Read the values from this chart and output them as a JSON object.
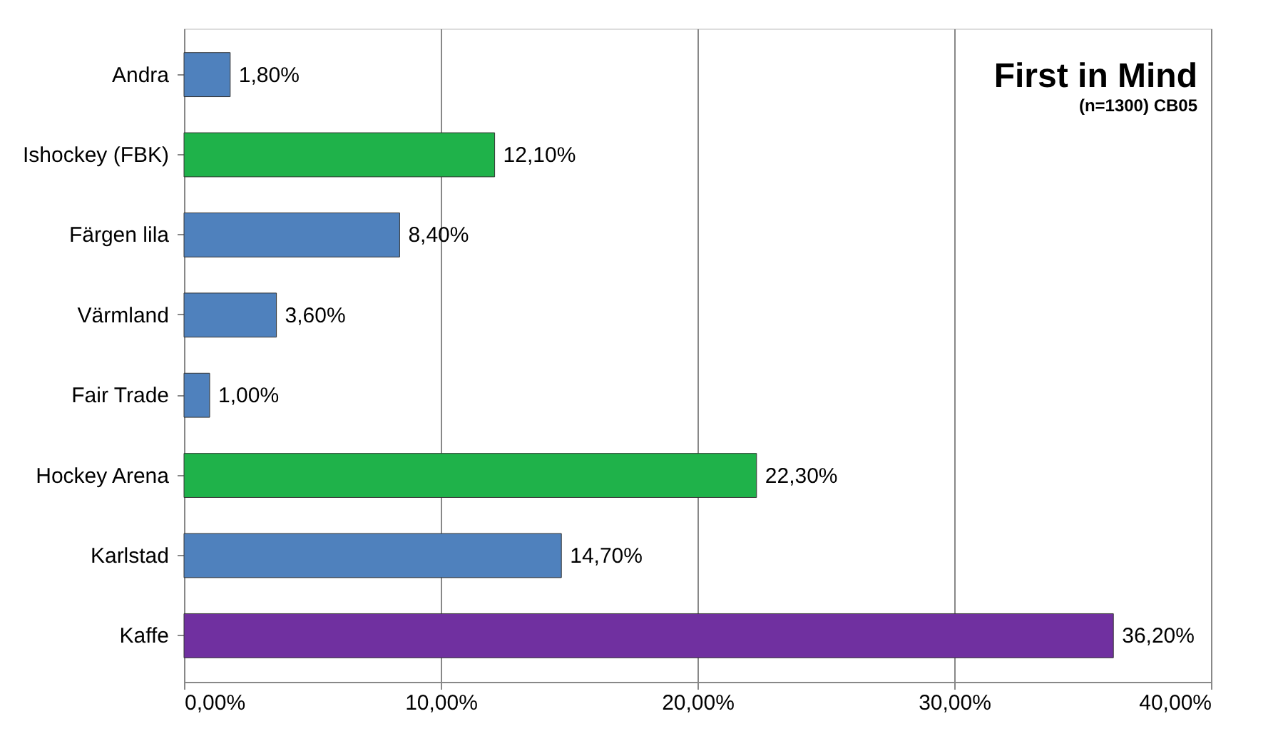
{
  "chart_data": {
    "type": "bar",
    "orientation": "horizontal",
    "title": "First in Mind",
    "subtitle": "(n=1300) CB05",
    "categories": [
      "Andra",
      "Ishockey (FBK)",
      "Färgen lila",
      "Värmland",
      "Fair Trade",
      "Hockey Arena",
      "Karlstad",
      "Kaffe"
    ],
    "values": [
      1.8,
      12.1,
      8.4,
      3.6,
      1.0,
      22.3,
      14.7,
      36.2
    ],
    "colors": [
      "#4f81bd",
      "#1fb24a",
      "#4f81bd",
      "#4f81bd",
      "#4f81bd",
      "#1fb24a",
      "#4f81bd",
      "#7030a0"
    ],
    "value_labels": [
      "1,80%",
      "12,10%",
      "8,40%",
      "3,60%",
      "1,00%",
      "22,30%",
      "14,70%",
      "36,20%"
    ],
    "xlim": [
      0,
      40
    ],
    "xticks": [
      {
        "value": 0,
        "label": "0,00%"
      },
      {
        "value": 10,
        "label": "10,00%"
      },
      {
        "value": 20,
        "label": "20,00%"
      },
      {
        "value": 30,
        "label": "30,00%"
      },
      {
        "value": 40,
        "label": "40,00%"
      }
    ],
    "grid": "x"
  }
}
